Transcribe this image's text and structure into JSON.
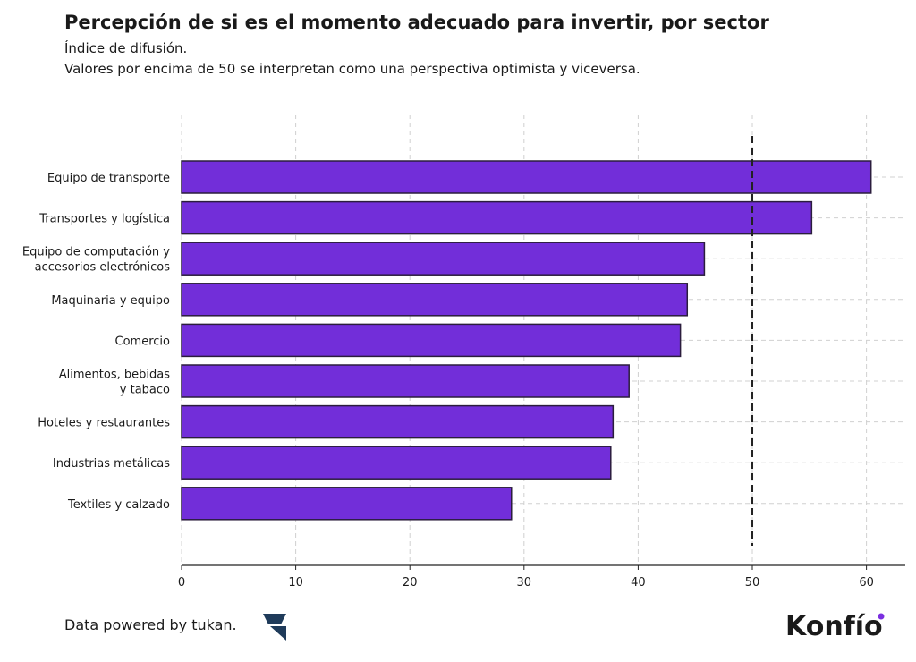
{
  "chart_data": {
    "type": "barh",
    "title": "Percepción de si es el momento adecuado para invertir, por sector",
    "subtitle": [
      "Índice de difusión.",
      "Valores por encima de 50 se interpretan como una perspectiva optimista y viceversa."
    ],
    "categories": [
      "Equipo de transporte",
      "Transportes y logística",
      "Equipo de computación y\naccesorios electrónicos",
      "Maquinaria y equipo",
      "Comercio",
      "Alimentos, bebidas\ny tabaco",
      "Hoteles y restaurantes",
      "Industrias metálicas",
      "Textiles y calzado"
    ],
    "values": [
      60.4,
      55.2,
      45.8,
      44.3,
      43.7,
      39.2,
      37.8,
      37.6,
      28.9
    ],
    "color": "#722ed9",
    "edge_color": "#2b1d3d",
    "xlim": [
      0,
      63.4
    ],
    "xticks": [
      0,
      10,
      20,
      30,
      40,
      50,
      60
    ],
    "reference_line": 50,
    "grid": true
  },
  "footer": {
    "source": "Data powered by tukan.",
    "brand": "Konfío"
  }
}
